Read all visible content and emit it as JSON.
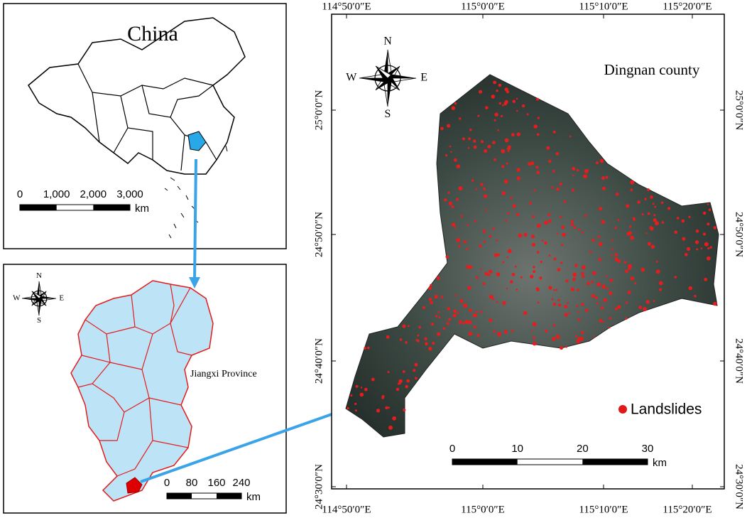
{
  "china_panel": {
    "title": "China",
    "scale_bar": {
      "ticks": [
        "0",
        "1,000",
        "2,000",
        "3,000"
      ],
      "unit": "km"
    }
  },
  "jiangxi_panel": {
    "label": "Jiangxi Province",
    "compass": {
      "n": "N",
      "e": "E",
      "s": "S",
      "w": "W"
    },
    "scale_bar": {
      "ticks": [
        "0",
        "80",
        "160",
        "240"
      ],
      "unit": "km"
    }
  },
  "dingnan_panel": {
    "title": "Dingnan county",
    "compass": {
      "n": "N",
      "e": "E",
      "s": "S",
      "w": "W"
    },
    "legend": "Landslides",
    "longitudes": [
      "114°50′0″E",
      "115°0′0″E",
      "115°10′0″E",
      "115°20′0″E"
    ],
    "latitudes": [
      "25°0′0″N",
      "24°50′0″N",
      "24°40′0″N",
      "24°30′0″N"
    ],
    "scale_bar": {
      "ticks": [
        "0",
        "10",
        "20",
        "30"
      ],
      "unit": "km"
    }
  }
}
